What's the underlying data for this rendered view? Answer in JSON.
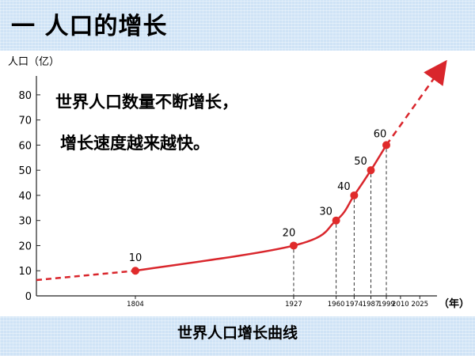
{
  "title": "一 人口的增长",
  "caption": "世界人口增长曲线",
  "annotation_lines": [
    "世界人口数量不断增长，",
    "增长速度越来越快。"
  ],
  "colors": {
    "line": "#d9262c",
    "point": "#e02b2b",
    "panel": "#ffffff",
    "background": "#cfe3f6"
  },
  "chart_data": {
    "type": "line",
    "title": "",
    "ylabel": "人口（亿）",
    "xlabel": "（年）",
    "yticks": [
      0,
      10,
      20,
      30,
      40,
      50,
      60,
      70,
      80
    ],
    "xticks": [
      "1804",
      "1927",
      "1960",
      "1974",
      "1987",
      "1999",
      "2010",
      "2025"
    ],
    "ylim": [
      0,
      85
    ],
    "series": [
      {
        "points": [
          {
            "x": "1804",
            "y": 10,
            "label": "10"
          },
          {
            "x": "1927",
            "y": 20,
            "label": "20"
          },
          {
            "x": "1960",
            "y": 30,
            "label": "30"
          },
          {
            "x": "1974",
            "y": 40,
            "label": "40"
          },
          {
            "x": "1987",
            "y": 50,
            "label": "50"
          },
          {
            "x": "1999",
            "y": 60,
            "label": "60"
          }
        ]
      }
    ],
    "grid": false
  }
}
